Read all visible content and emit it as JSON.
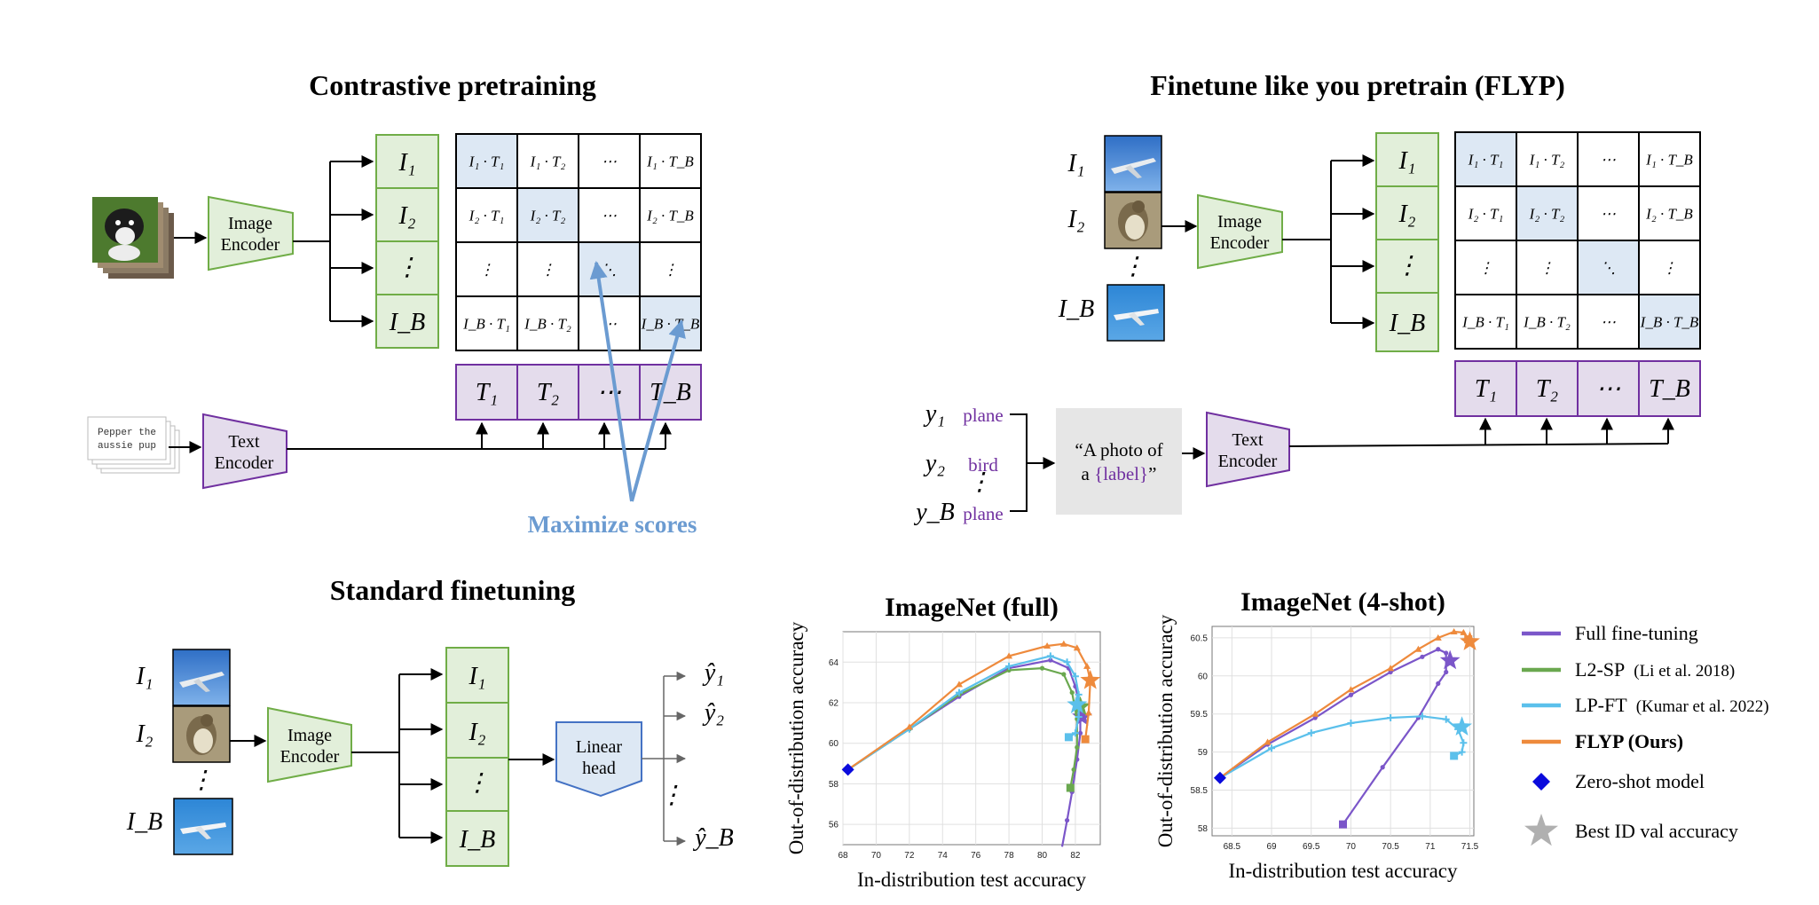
{
  "titles": {
    "contrastive": "Contrastive pretraining",
    "flyp": "Finetune like you pretrain (FLYP)",
    "standard": "Standard finetuning"
  },
  "encoders": {
    "image_line1": "Image",
    "image_line2": "Encoder",
    "text_line1": "Text",
    "text_line2": "Encoder",
    "linear_line1": "Linear",
    "linear_line2": "head"
  },
  "text_card": {
    "line1": "Pepper the",
    "line2": "aussie pup"
  },
  "maximize_label": "Maximize scores",
  "image_symbols": [
    "I₁",
    "I₂",
    "⋮",
    "I_B"
  ],
  "text_symbols": [
    "T₁",
    "T₂",
    "⋯",
    "T_B"
  ],
  "matrix": [
    [
      "I₁ · T₁",
      "I₁ · T₂",
      "⋯",
      "I₁ · T_B"
    ],
    [
      "I₂ · T₁",
      "I₂ · T₂",
      "⋯",
      "I₂ · T_B"
    ],
    [
      "⋮",
      "⋮",
      "⋱",
      "⋮"
    ],
    [
      "I_B · T₁",
      "I_B · T₂",
      "⋯",
      "I_B · T_B"
    ]
  ],
  "image_labels": [
    "I₁",
    "I₂",
    "⋮",
    "I_B"
  ],
  "flyp_labels": {
    "y_symbols": [
      "y₁",
      "y₂",
      "⋮",
      "y_B"
    ],
    "y_words": [
      "plane",
      "bird",
      "",
      "plane"
    ],
    "template_line1": "“A photo of",
    "template_line2a": "a ",
    "template_label": "{label}",
    "template_line2b": "”"
  },
  "outputs": [
    "ŷ₁",
    "ŷ₂",
    "⋮",
    "ŷ_B"
  ],
  "colors": {
    "green_fill": "#e2efda",
    "green_stroke": "#70ad47",
    "purple_fill": "#e4dcec",
    "purple_stroke": "#7030a0",
    "blue_fill": "#dde8f4",
    "blue_stroke": "#4472c4",
    "arrow_blue": "#6b9bd1",
    "full_ft": "#7b56c9",
    "l2sp": "#6aa84f",
    "lpft": "#5bc0eb",
    "flyp": "#ee8a3c",
    "zeroshot": "#0a0adc",
    "star_gray": "#b0b0b0"
  },
  "chart_data": [
    {
      "type": "line",
      "title": "ImageNet (full)",
      "xlabel": "In-distribution test accuracy",
      "ylabel": "Out-of-distribution accuracy",
      "xlim": [
        68,
        83.5
      ],
      "ylim": [
        55,
        65.5
      ],
      "xticks": [
        68,
        70,
        72,
        74,
        76,
        78,
        80,
        82
      ],
      "yticks": [
        56,
        58,
        60,
        62,
        64
      ],
      "grid": true,
      "zero_shot": [
        68.3,
        58.7
      ],
      "series": [
        {
          "name": "Full fine-tuning",
          "color": "#7b56c9",
          "marker": "circle",
          "points": [
            [
              68.3,
              58.7
            ],
            [
              72,
              60.7
            ],
            [
              75,
              62.3
            ],
            [
              78,
              63.7
            ],
            [
              80.5,
              64.1
            ],
            [
              81.6,
              63.7
            ],
            [
              82.0,
              62.8
            ],
            [
              82.3,
              61.8
            ],
            [
              82.3,
              60.5
            ],
            [
              82.1,
              59.2
            ],
            [
              81.8,
              57.6
            ],
            [
              81.5,
              56.2
            ],
            [
              81.2,
              54.9
            ]
          ],
          "best": [
            82.4,
            61.3
          ]
        },
        {
          "name": "L2-SP",
          "color": "#6aa84f",
          "marker": "circle",
          "points": [
            [
              68.3,
              58.7
            ],
            [
              72,
              60.7
            ],
            [
              75,
              62.4
            ],
            [
              78,
              63.6
            ],
            [
              80,
              63.7
            ],
            [
              81.3,
              63.4
            ],
            [
              81.8,
              62.5
            ],
            [
              82.1,
              61.2
            ],
            [
              82.1,
              59.8
            ],
            [
              81.9,
              58.7
            ],
            [
              81.7,
              57.8
            ]
          ],
          "best": [
            82.3,
            61.8
          ]
        },
        {
          "name": "LP-FT",
          "color": "#5bc0eb",
          "marker": "plus",
          "points": [
            [
              68.3,
              58.7
            ],
            [
              72,
              60.7
            ],
            [
              75,
              62.5
            ],
            [
              78,
              63.8
            ],
            [
              80.5,
              64.3
            ],
            [
              81.5,
              64.0
            ],
            [
              82.0,
              63.3
            ],
            [
              82.2,
              62.4
            ],
            [
              82.2,
              61.3
            ],
            [
              82.0,
              60.5
            ],
            [
              81.6,
              60.3
            ]
          ],
          "best": [
            82.1,
            61.9
          ]
        },
        {
          "name": "FLYP (Ours)",
          "color": "#ee8a3c",
          "marker": "triangle",
          "points": [
            [
              68.3,
              58.7
            ],
            [
              72,
              60.8
            ],
            [
              75,
              62.9
            ],
            [
              78,
              64.3
            ],
            [
              80.3,
              64.8
            ],
            [
              81.3,
              64.9
            ],
            [
              82.1,
              64.7
            ],
            [
              82.7,
              63.8
            ],
            [
              82.9,
              63.1
            ],
            [
              82.8,
              61.5
            ],
            [
              82.6,
              60.2
            ]
          ],
          "best": [
            82.9,
            63.1
          ]
        }
      ]
    },
    {
      "type": "line",
      "title": "ImageNet (4-shot)",
      "xlabel": "In-distribution test accuracy",
      "ylabel": "Out-of-distribution accuracy",
      "xlim": [
        68.25,
        71.55
      ],
      "ylim": [
        57.9,
        60.65
      ],
      "xticks": [
        68.5,
        69.0,
        69.5,
        70.0,
        70.5,
        71.0,
        71.5
      ],
      "yticks": [
        58.0,
        58.5,
        59.0,
        59.5,
        60.0,
        60.5
      ],
      "grid": true,
      "zero_shot": [
        68.35,
        58.66
      ],
      "series": [
        {
          "name": "Full fine-tuning",
          "color": "#7b56c9",
          "marker": "circle",
          "points": [
            [
              68.35,
              58.66
            ],
            [
              68.95,
              59.1
            ],
            [
              69.55,
              59.45
            ],
            [
              70.0,
              59.75
            ],
            [
              70.5,
              60.05
            ],
            [
              70.9,
              60.25
            ],
            [
              71.1,
              60.35
            ],
            [
              71.2,
              60.3
            ],
            [
              71.2,
              60.05
            ],
            [
              71.1,
              59.9
            ],
            [
              70.85,
              59.45
            ],
            [
              70.4,
              58.8
            ],
            [
              69.9,
              58.05
            ]
          ],
          "best": [
            71.25,
            60.2
          ]
        },
        {
          "name": "L2-SP",
          "color": "#6aa84f",
          "marker": "circle",
          "points": [],
          "best": null
        },
        {
          "name": "LP-FT",
          "color": "#5bc0eb",
          "marker": "plus",
          "points": [
            [
              68.35,
              58.66
            ],
            [
              69.0,
              59.05
            ],
            [
              69.5,
              59.25
            ],
            [
              70.0,
              59.38
            ],
            [
              70.5,
              59.45
            ],
            [
              70.9,
              59.47
            ],
            [
              71.2,
              59.43
            ],
            [
              71.35,
              59.3
            ],
            [
              71.42,
              59.12
            ],
            [
              71.4,
              59.0
            ],
            [
              71.3,
              58.95
            ]
          ],
          "best": [
            71.4,
            59.33
          ]
        },
        {
          "name": "FLYP (Ours)",
          "color": "#ee8a3c",
          "marker": "triangle",
          "points": [
            [
              68.35,
              58.66
            ],
            [
              68.95,
              59.13
            ],
            [
              69.55,
              59.5
            ],
            [
              70.0,
              59.82
            ],
            [
              70.5,
              60.1
            ],
            [
              70.85,
              60.35
            ],
            [
              71.1,
              60.5
            ],
            [
              71.3,
              60.58
            ],
            [
              71.42,
              60.57
            ],
            [
              71.48,
              60.48
            ]
          ],
          "best": [
            71.5,
            60.45
          ]
        }
      ]
    }
  ],
  "legend": [
    {
      "label": "Full fine-tuning",
      "cite": "",
      "bold": false,
      "kind": "line",
      "color": "#7b56c9"
    },
    {
      "label": "L2-SP",
      "cite": "(Li et al. 2018)",
      "bold": false,
      "kind": "line",
      "color": "#6aa84f"
    },
    {
      "label": "LP-FT",
      "cite": "(Kumar et al. 2022)",
      "bold": false,
      "kind": "line",
      "color": "#5bc0eb"
    },
    {
      "label": "FLYP (Ours)",
      "cite": "",
      "bold": true,
      "kind": "line",
      "color": "#ee8a3c"
    },
    {
      "label": "Zero-shot model",
      "cite": "",
      "bold": false,
      "kind": "diamond",
      "color": "#0a0adc"
    },
    {
      "label": "Best ID val accuracy",
      "cite": "",
      "bold": false,
      "kind": "star",
      "color": "#b0b0b0"
    }
  ]
}
